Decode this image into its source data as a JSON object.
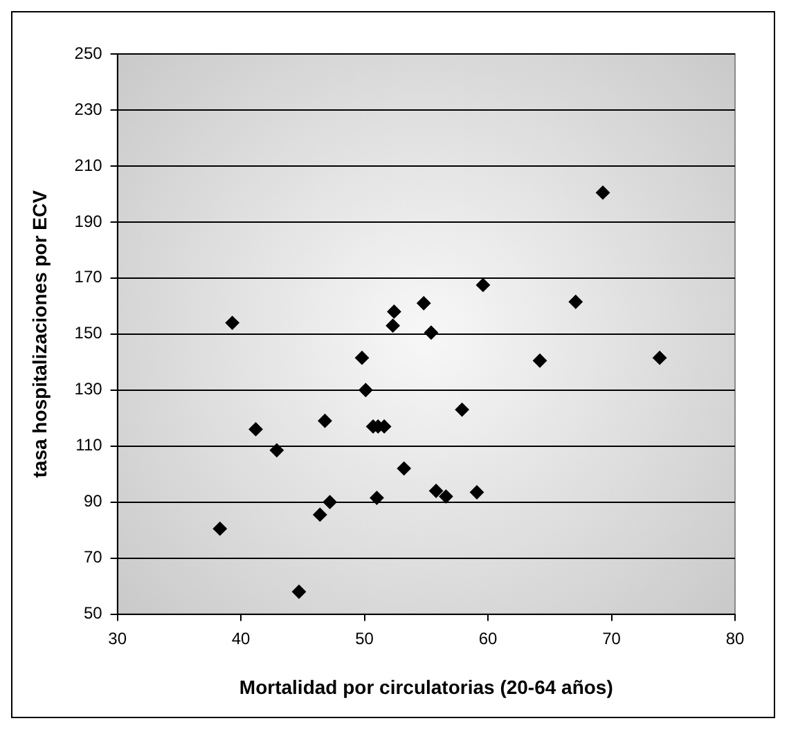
{
  "chart_data": {
    "type": "scatter",
    "xlabel": "Mortalidad por circulatorias (20-64 años)",
    "ylabel": "tasa hospitalizaciones por ECV",
    "xlim": [
      30,
      80
    ],
    "xticks": [
      30,
      40,
      50,
      60,
      70,
      80
    ],
    "ylim": [
      50,
      250
    ],
    "yticks": [
      50,
      70,
      90,
      110,
      130,
      150,
      170,
      190,
      210,
      230,
      250
    ],
    "grid": "y",
    "marker": "diamond",
    "legend": false,
    "series": [
      {
        "color": "#000000",
        "x": [
          38.3,
          39.3,
          41.2,
          42.9,
          44.7,
          46.4,
          46.8,
          47.2,
          49.8,
          50.1,
          50.7,
          51.0,
          51.1,
          51.6,
          52.3,
          52.4,
          53.2,
          54.8,
          55.4,
          55.8,
          56.6,
          57.9,
          59.1,
          59.6,
          64.2,
          67.1,
          69.3,
          73.9
        ],
        "values": [
          80.5,
          154,
          116,
          108.5,
          58,
          85.5,
          119,
          90,
          141.5,
          130,
          117,
          91.5,
          117,
          117,
          153,
          158,
          102,
          161,
          150.5,
          94,
          92,
          123,
          93.5,
          167.5,
          140.5,
          161.5,
          200.5,
          141.5
        ]
      }
    ]
  }
}
